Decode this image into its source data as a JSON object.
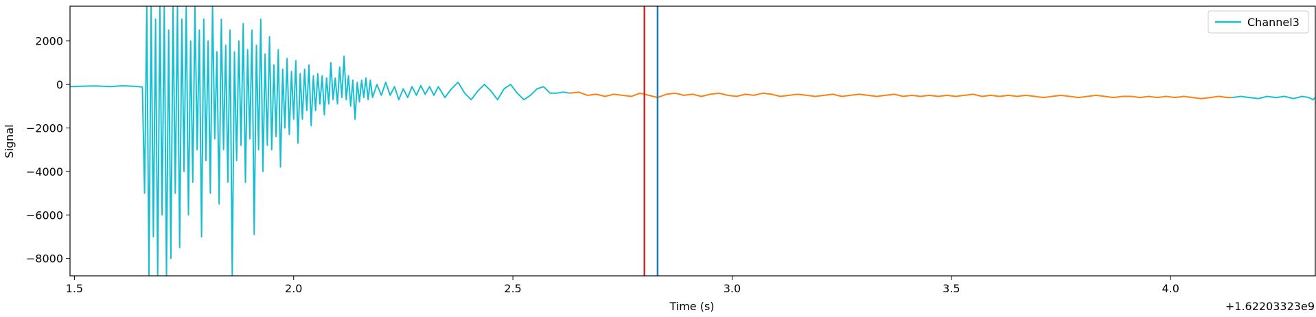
{
  "chart_data": {
    "type": "line",
    "title": "",
    "xlabel": "Time (s)",
    "ylabel": "Signal",
    "x_offset_label": "+1.62203323e9",
    "xlim": [
      1.49,
      4.33
    ],
    "ylim": [
      -8800,
      3600
    ],
    "xticks": [
      1.5,
      2.0,
      2.5,
      3.0,
      3.5,
      4.0
    ],
    "xtick_labels": [
      "1.5",
      "2.0",
      "2.5",
      "3.0",
      "3.5",
      "4.0"
    ],
    "yticks": [
      2000,
      0,
      -2000,
      -4000,
      -6000,
      -8000
    ],
    "ytick_labels": [
      "2000",
      "0",
      "−2000",
      "−4000",
      "−6000",
      "−8000"
    ],
    "grid": false,
    "legend_position": "top-right",
    "series": [
      {
        "name": "Channel3",
        "color": "#17becf",
        "points": [
          [
            1.49,
            -100
          ],
          [
            1.52,
            -80
          ],
          [
            1.55,
            -70
          ],
          [
            1.58,
            -100
          ],
          [
            1.61,
            -60
          ],
          [
            1.64,
            -90
          ],
          [
            1.655,
            -120
          ],
          [
            1.66,
            -5000
          ],
          [
            1.665,
            3600
          ],
          [
            1.67,
            -8800
          ],
          [
            1.675,
            3600
          ],
          [
            1.68,
            -7000
          ],
          [
            1.685,
            3000
          ],
          [
            1.69,
            -8800
          ],
          [
            1.695,
            3600
          ],
          [
            1.7,
            -6000
          ],
          [
            1.705,
            3600
          ],
          [
            1.71,
            -8800
          ],
          [
            1.715,
            2500
          ],
          [
            1.72,
            -8000
          ],
          [
            1.725,
            3600
          ],
          [
            1.73,
            -5000
          ],
          [
            1.735,
            3600
          ],
          [
            1.74,
            -7500
          ],
          [
            1.745,
            3000
          ],
          [
            1.75,
            -4000
          ],
          [
            1.755,
            3600
          ],
          [
            1.76,
            -6000
          ],
          [
            1.765,
            2000
          ],
          [
            1.77,
            -4500
          ],
          [
            1.775,
            3600
          ],
          [
            1.78,
            -3000
          ],
          [
            1.785,
            2500
          ],
          [
            1.79,
            -7000
          ],
          [
            1.795,
            3000
          ],
          [
            1.8,
            -3500
          ],
          [
            1.805,
            2000
          ],
          [
            1.81,
            -5000
          ],
          [
            1.815,
            3600
          ],
          [
            1.82,
            -2500
          ],
          [
            1.825,
            1500
          ],
          [
            1.83,
            -5500
          ],
          [
            1.835,
            3000
          ],
          [
            1.84,
            -3000
          ],
          [
            1.845,
            1800
          ],
          [
            1.85,
            -4500
          ],
          [
            1.855,
            2500
          ],
          [
            1.86,
            -8800
          ],
          [
            1.865,
            1500
          ],
          [
            1.87,
            -3500
          ],
          [
            1.875,
            2000
          ],
          [
            1.88,
            -2800
          ],
          [
            1.885,
            2800
          ],
          [
            1.89,
            -4500
          ],
          [
            1.895,
            1600
          ],
          [
            1.9,
            -2500
          ],
          [
            1.905,
            2500
          ],
          [
            1.91,
            -6900
          ],
          [
            1.915,
            1800
          ],
          [
            1.92,
            -3000
          ],
          [
            1.925,
            3000
          ],
          [
            1.93,
            -4000
          ],
          [
            1.935,
            1400
          ],
          [
            1.94,
            -2800
          ],
          [
            1.945,
            2200
          ],
          [
            1.95,
            -3000
          ],
          [
            1.955,
            900
          ],
          [
            1.96,
            -2400
          ],
          [
            1.965,
            1600
          ],
          [
            1.97,
            -3800
          ],
          [
            1.975,
            700
          ],
          [
            1.98,
            -2000
          ],
          [
            1.985,
            1200
          ],
          [
            1.99,
            -2300
          ],
          [
            1.995,
            600
          ],
          [
            2.0,
            -1600
          ],
          [
            2.005,
            1100
          ],
          [
            2.01,
            -2700
          ],
          [
            2.015,
            500
          ],
          [
            2.02,
            -1600
          ],
          [
            2.025,
            700
          ],
          [
            2.03,
            -1200
          ],
          [
            2.035,
            900
          ],
          [
            2.04,
            -1900
          ],
          [
            2.045,
            400
          ],
          [
            2.05,
            -1200
          ],
          [
            2.055,
            500
          ],
          [
            2.06,
            -900
          ],
          [
            2.065,
            400
          ],
          [
            2.07,
            -1400
          ],
          [
            2.075,
            300
          ],
          [
            2.08,
            -900
          ],
          [
            2.085,
            1000
          ],
          [
            2.09,
            -700
          ],
          [
            2.095,
            300
          ],
          [
            2.1,
            -900
          ],
          [
            2.105,
            800
          ],
          [
            2.11,
            -600
          ],
          [
            2.115,
            1300
          ],
          [
            2.12,
            -700
          ],
          [
            2.125,
            400
          ],
          [
            2.13,
            -1000
          ],
          [
            2.135,
            200
          ],
          [
            2.14,
            -1600
          ],
          [
            2.145,
            100
          ],
          [
            2.15,
            -800
          ],
          [
            2.155,
            200
          ],
          [
            2.16,
            -600
          ],
          [
            2.165,
            300
          ],
          [
            2.17,
            -700
          ],
          [
            2.175,
            200
          ],
          [
            2.18,
            -600
          ],
          [
            2.19,
            0
          ],
          [
            2.2,
            -500
          ],
          [
            2.21,
            100
          ],
          [
            2.22,
            -500
          ],
          [
            2.23,
            -100
          ],
          [
            2.24,
            -700
          ],
          [
            2.25,
            -200
          ],
          [
            2.26,
            -600
          ],
          [
            2.27,
            -100
          ],
          [
            2.28,
            -500
          ],
          [
            2.29,
            -50
          ],
          [
            2.3,
            -450
          ],
          [
            2.31,
            -100
          ],
          [
            2.32,
            -500
          ],
          [
            2.33,
            -100
          ],
          [
            2.345,
            -600
          ],
          [
            2.36,
            -200
          ],
          [
            2.375,
            100
          ],
          [
            2.39,
            -400
          ],
          [
            2.405,
            -700
          ],
          [
            2.42,
            -300
          ],
          [
            2.435,
            0
          ],
          [
            2.45,
            -300
          ],
          [
            2.465,
            -700
          ],
          [
            2.48,
            -200
          ],
          [
            2.495,
            0
          ],
          [
            2.51,
            -400
          ],
          [
            2.525,
            -700
          ],
          [
            2.54,
            -500
          ],
          [
            2.555,
            -200
          ],
          [
            2.57,
            -100
          ],
          [
            2.585,
            -400
          ],
          [
            2.6,
            -400
          ],
          [
            2.615,
            -350
          ],
          [
            2.63,
            -400
          ]
        ]
      },
      {
        "name": "",
        "color": "#ff7f0e",
        "points": [
          [
            2.63,
            -400
          ],
          [
            2.65,
            -350
          ],
          [
            2.67,
            -500
          ],
          [
            2.69,
            -450
          ],
          [
            2.71,
            -550
          ],
          [
            2.73,
            -450
          ],
          [
            2.75,
            -500
          ],
          [
            2.77,
            -550
          ],
          [
            2.79,
            -400
          ],
          [
            2.81,
            -500
          ],
          [
            2.83,
            -600
          ],
          [
            2.85,
            -450
          ],
          [
            2.87,
            -400
          ],
          [
            2.89,
            -500
          ],
          [
            2.91,
            -450
          ],
          [
            2.93,
            -550
          ],
          [
            2.95,
            -450
          ],
          [
            2.97,
            -400
          ],
          [
            2.99,
            -500
          ],
          [
            3.01,
            -550
          ],
          [
            3.03,
            -450
          ],
          [
            3.05,
            -500
          ],
          [
            3.07,
            -400
          ],
          [
            3.09,
            -450
          ],
          [
            3.11,
            -550
          ],
          [
            3.13,
            -500
          ],
          [
            3.15,
            -450
          ],
          [
            3.17,
            -500
          ],
          [
            3.19,
            -550
          ],
          [
            3.21,
            -500
          ],
          [
            3.23,
            -450
          ],
          [
            3.25,
            -550
          ],
          [
            3.27,
            -500
          ],
          [
            3.29,
            -450
          ],
          [
            3.31,
            -500
          ],
          [
            3.33,
            -550
          ],
          [
            3.35,
            -500
          ],
          [
            3.37,
            -450
          ],
          [
            3.39,
            -550
          ],
          [
            3.41,
            -500
          ],
          [
            3.43,
            -550
          ],
          [
            3.45,
            -500
          ],
          [
            3.47,
            -550
          ],
          [
            3.49,
            -500
          ],
          [
            3.51,
            -550
          ],
          [
            3.53,
            -500
          ],
          [
            3.55,
            -450
          ],
          [
            3.57,
            -550
          ],
          [
            3.59,
            -500
          ],
          [
            3.61,
            -550
          ],
          [
            3.63,
            -500
          ],
          [
            3.65,
            -550
          ],
          [
            3.67,
            -500
          ],
          [
            3.69,
            -550
          ],
          [
            3.71,
            -600
          ],
          [
            3.73,
            -550
          ],
          [
            3.75,
            -500
          ],
          [
            3.77,
            -550
          ],
          [
            3.79,
            -600
          ],
          [
            3.81,
            -550
          ],
          [
            3.83,
            -500
          ],
          [
            3.85,
            -550
          ],
          [
            3.87,
            -600
          ],
          [
            3.89,
            -550
          ],
          [
            3.91,
            -550
          ],
          [
            3.93,
            -600
          ],
          [
            3.95,
            -550
          ],
          [
            3.97,
            -600
          ],
          [
            3.99,
            -550
          ],
          [
            4.01,
            -600
          ],
          [
            4.03,
            -550
          ],
          [
            4.05,
            -600
          ],
          [
            4.07,
            -650
          ],
          [
            4.09,
            -600
          ],
          [
            4.11,
            -550
          ],
          [
            4.13,
            -600
          ],
          [
            4.14,
            -600
          ]
        ]
      },
      {
        "name": "",
        "color": "#17becf",
        "points": [
          [
            4.14,
            -600
          ],
          [
            4.16,
            -550
          ],
          [
            4.18,
            -600
          ],
          [
            4.2,
            -650
          ],
          [
            4.22,
            -550
          ],
          [
            4.24,
            -600
          ],
          [
            4.26,
            -550
          ],
          [
            4.28,
            -650
          ],
          [
            4.3,
            -550
          ],
          [
            4.315,
            -600
          ],
          [
            4.325,
            -700
          ],
          [
            4.33,
            -600
          ]
        ]
      }
    ],
    "vlines": [
      {
        "x": 2.8,
        "color": "#d62728"
      },
      {
        "x": 2.83,
        "color": "#1f77b4"
      }
    ]
  }
}
